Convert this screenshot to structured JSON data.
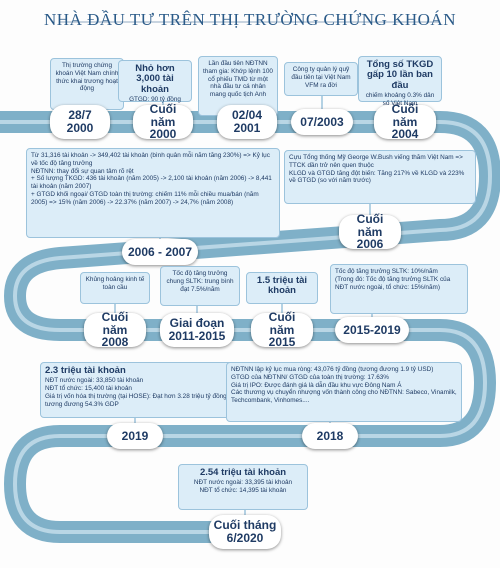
{
  "title": "NHÀ ĐẦU TƯ TRÊN THỊ TRƯỜNG CHỨNG KHOÁN",
  "events": [
    {
      "date": "28/7 2000",
      "details": [
        "Thị trường chứng khoán Việt Nam chính thức khai trương hoạt động"
      ]
    },
    {
      "date": "Cuối năm 2000",
      "headline": "Nhỏ hơn 3,000 tài khoản",
      "details": [
        "GTGD: 90 tỷ đồng"
      ]
    },
    {
      "date": "02/04 2001",
      "details": [
        "Lần đầu tiên NĐTNN tham gia: Khớp lệnh 100 cổ phiếu TMD từ một nhà đầu tư cá nhân mang quốc tịch Anh"
      ]
    },
    {
      "date": "07/2003",
      "details": [
        "Công ty quản lý quỹ đầu tiên tại Việt Nam VFM ra đời"
      ]
    },
    {
      "date": "Cuối năm 2004",
      "headline": "Tổng số TKGD gấp 10 lần ban đầu",
      "details": [
        "chiếm khoảng 0.3% dân số Việt Nam"
      ]
    },
    {
      "date": "2006 - 2007",
      "details": [
        "Từ 31,316 tài khoản -> 349,402 tài khoản (bình quân mỗi năm tăng 230%) => Kỷ lục về tốc độ tăng trưởng",
        "NĐTNN: thay đổi sự quan tâm rõ rệt",
        "+ Số lượng TKGD: 436 tài khoản (năm 2005) -> 2,100 tài khoản (năm 2006) -> 8,441 tài khoản (năm 2007)",
        "+ GTGD khối ngoại/ GTGD toàn thị trường: chiếm 11% mỗi chiều mua/bán (năm 2005) => 15% (năm 2006) -> 22.37% (năm 2007) -> 24,7% (năm 2008)"
      ]
    },
    {
      "date": "Cuối năm 2006",
      "details": [
        "Cựu Tổng thống Mỹ George W.Bush viếng thăm Việt Nam => TTCK dần trở nên quen thuộc",
        "KLGD và GTGD tăng đột biến: Tăng 217% về KLGD và 223% về GTGD (so với năm trước)"
      ]
    },
    {
      "date": "Cuối năm 2008",
      "details": [
        "Khủng hoảng kinh tế toàn cầu"
      ]
    },
    {
      "date": "Giai đoạn 2011-2015",
      "details": [
        "Tốc độ tăng trưởng chung SLTK: trung bình đạt 7.5%/năm"
      ]
    },
    {
      "date": "Cuối năm 2015",
      "headline": "1.5 triệu tài khoản",
      "details": []
    },
    {
      "date": "2015-2019",
      "details": [
        "Tốc độ tăng trưởng SLTK: 10%/năm",
        "(Trong đó: Tốc độ tăng trưởng SLTK của NĐT nước ngoài, tổ chức: 15%/năm)"
      ]
    },
    {
      "date": "2019",
      "headline": "2.3 triệu tài khoản",
      "details": [
        "NĐT nước ngoài: 33,850 tài khoản",
        "NĐT tổ chức: 15,400 tài khoản",
        "Giá trị vốn hóa thị trường (tại HOSE): Đạt hơn 3.28 triệu tỷ đồng, tương đương 54.3% GDP"
      ]
    },
    {
      "date": "2018",
      "details": [
        "NĐTNN lập kỷ lục mua ròng: 43,076 tỷ đồng (tương đương 1.9 tỷ USD)",
        "GTGD của NĐTNN/ GTGD của toàn thị trường: 17.63%",
        "Giá trị IPO: Được đánh giá là dẫn đầu khu vực Đông Nam Á",
        "Các thương vụ chuyển nhượng vốn thành công cho NĐTNN: Sabeco, Vinamilk, Techcombank, Vinhomes...."
      ]
    },
    {
      "date": "Cuối tháng 6/2020",
      "headline": "2.54 triệu tài khoản",
      "details": [
        "NĐT nước ngoài: 33,395 tài khoản",
        "NĐT tổ chức: 14,395 tài khoản"
      ]
    }
  ]
}
